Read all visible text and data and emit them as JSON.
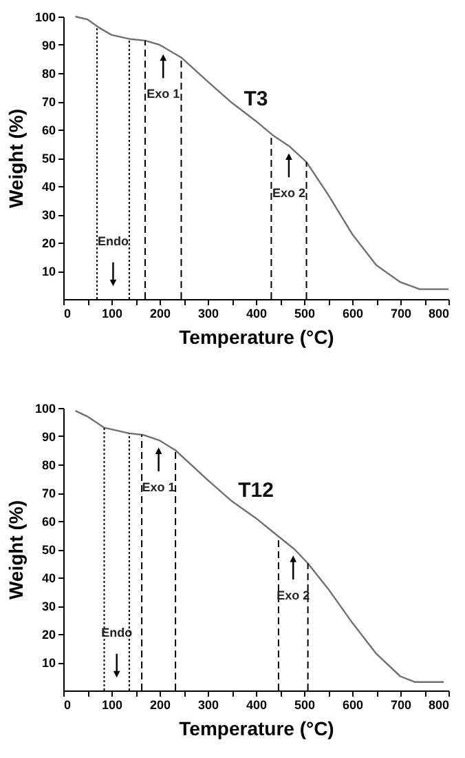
{
  "chart_data": [
    {
      "type": "line",
      "title": "T3",
      "xlabel": "Temperature (°C)",
      "ylabel": "Weight (%)",
      "x": [
        25,
        50,
        75,
        100,
        140,
        170,
        200,
        245,
        300,
        350,
        400,
        435,
        470,
        505,
        550,
        600,
        650,
        700,
        740,
        800
      ],
      "series": [
        {
          "color": "#707070",
          "values": [
            100,
            99,
            96,
            93.5,
            92,
            91.5,
            90,
            85.5,
            77,
            69.5,
            63,
            58,
            54,
            48.5,
            37,
            23,
            12,
            6,
            3.5,
            3.5
          ]
        }
      ],
      "xlim": [
        0,
        800
      ],
      "ylim": [
        0,
        100
      ],
      "xticks": [
        0,
        {
          "value": 50,
          "label": null
        },
        100,
        {
          "value": 150,
          "label": null
        },
        200,
        {
          "value": 250,
          "label": null
        },
        300,
        {
          "value": 350,
          "label": null
        },
        400,
        {
          "value": 450,
          "label": null
        },
        500,
        {
          "value": 550,
          "label": null
        },
        600,
        {
          "value": 650,
          "label": null
        },
        700,
        {
          "value": 750,
          "label": null
        },
        800
      ],
      "yticks": [
        10,
        20,
        30,
        40,
        50,
        60,
        70,
        80,
        90,
        100
      ],
      "ref_lines": [
        {
          "axis": "x",
          "value": 70,
          "line_style": "dotted"
        },
        {
          "axis": "x",
          "value": 137,
          "line_style": "dotted"
        },
        {
          "axis": "x",
          "value": 170,
          "line_style": "dashed"
        },
        {
          "axis": "x",
          "value": 245,
          "line_style": "dashed"
        },
        {
          "axis": "x",
          "value": 432,
          "line_style": "dashed"
        },
        {
          "axis": "x",
          "value": 505,
          "line_style": "dashed"
        }
      ],
      "annotations": [
        "Endo",
        "Exo 1",
        "Exo 2"
      ],
      "grid": false,
      "marker": "none",
      "line_style": "solid"
    },
    {
      "type": "line",
      "title": "T12",
      "xlabel": "Temperature (°C)",
      "ylabel": "Weight (%)",
      "x": [
        25,
        50,
        85,
        137,
        165,
        200,
        233,
        300,
        350,
        400,
        447,
        480,
        508,
        550,
        600,
        650,
        700,
        730,
        790
      ],
      "series": [
        {
          "color": "#707070",
          "values": [
            99,
            97,
            93,
            91,
            90.5,
            88.5,
            85,
            74.5,
            67,
            61,
            54.5,
            50,
            45,
            36,
            24,
            13,
            5,
            3,
            3
          ]
        }
      ],
      "xlim": [
        0,
        800
      ],
      "ylim": [
        0,
        100
      ],
      "xticks": [
        0,
        {
          "value": 50,
          "label": null
        },
        100,
        {
          "value": 150,
          "label": null
        },
        200,
        {
          "value": 250,
          "label": null
        },
        300,
        {
          "value": 350,
          "label": null
        },
        400,
        {
          "value": 450,
          "label": null
        },
        500,
        {
          "value": 550,
          "label": null
        },
        600,
        {
          "value": 650,
          "label": null
        },
        700,
        {
          "value": 750,
          "label": null
        },
        800
      ],
      "yticks": [
        10,
        20,
        30,
        40,
        50,
        60,
        70,
        80,
        90,
        100
      ],
      "ref_lines": [
        {
          "axis": "x",
          "value": 85,
          "line_style": "dotted"
        },
        {
          "axis": "x",
          "value": 137,
          "line_style": "dotted"
        },
        {
          "axis": "x",
          "value": 163,
          "line_style": "dashed"
        },
        {
          "axis": "x",
          "value": 233,
          "line_style": "dashed"
        },
        {
          "axis": "x",
          "value": 447,
          "line_style": "dashed"
        },
        {
          "axis": "x",
          "value": 508,
          "line_style": "dashed"
        }
      ],
      "annotations": [
        "Endo",
        "Exo 1",
        "Exo 2"
      ],
      "grid": false,
      "marker": "none",
      "line_style": "solid"
    }
  ]
}
